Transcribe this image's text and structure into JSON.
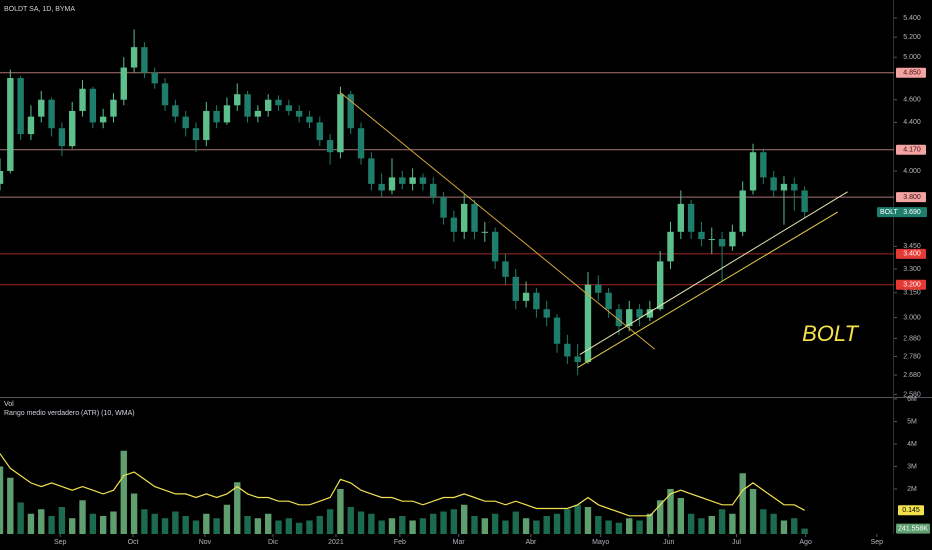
{
  "header": {
    "title": "BOLDT SA, 1D, BYMA"
  },
  "chart_data": {
    "type": "candlestick",
    "annotation": "BOLT",
    "log_scale": true,
    "xlim": [
      0,
      260
    ],
    "xticks": [
      {
        "value": 17.5,
        "label": "Sep"
      },
      {
        "value": 38.7,
        "label": "Oct"
      },
      {
        "value": 59.6,
        "label": "Nov"
      },
      {
        "value": 79.4,
        "label": "Dic"
      },
      {
        "value": 97.7,
        "label": "2021"
      },
      {
        "value": 116.3,
        "label": "Feb"
      },
      {
        "value": 133.4,
        "label": "Mar"
      },
      {
        "value": 154.4,
        "label": "Abr"
      },
      {
        "value": 174.7,
        "label": "Mayo"
      },
      {
        "value": 194.5,
        "label": "Jun"
      },
      {
        "value": 214.2,
        "label": "Jul"
      },
      {
        "value": 234.3,
        "label": "Ago"
      },
      {
        "value": 255,
        "label": "Sep"
      }
    ],
    "ylim": [
      2.58,
      5.4
    ],
    "yticks": [
      {
        "value": 5.4,
        "label": "5.400"
      },
      {
        "value": 5.2,
        "label": "5.200"
      },
      {
        "value": 5.0,
        "label": "5.000"
      },
      {
        "value": 4.6,
        "label": "4.600"
      },
      {
        "value": 4.4,
        "label": "4.400"
      },
      {
        "value": 4.0,
        "label": "4.000"
      },
      {
        "value": 3.45,
        "label": "3.450"
      },
      {
        "value": 3.3,
        "label": "3.300"
      },
      {
        "value": 3.15,
        "label": "3.150"
      },
      {
        "value": 3.0,
        "label": "3.000"
      },
      {
        "value": 2.88,
        "label": "2.880"
      },
      {
        "value": 2.78,
        "label": "2.780"
      },
      {
        "value": 2.68,
        "label": "2.680"
      },
      {
        "value": 2.58,
        "label": "2.580"
      }
    ],
    "up_color": "#5cbf8c",
    "down_color": "#1f7d6b",
    "x": [
      0,
      3,
      6,
      9,
      12,
      15,
      18,
      21,
      24,
      27,
      30,
      33,
      36,
      39,
      42,
      45,
      48,
      51,
      54,
      57,
      60,
      63,
      66,
      69,
      72,
      75,
      78,
      81,
      84,
      87,
      90,
      93,
      96,
      99,
      102,
      105,
      108,
      111,
      114,
      117,
      120,
      123,
      126,
      129,
      132,
      135,
      138,
      141,
      144,
      147,
      150,
      153,
      156,
      159,
      162,
      165,
      168,
      171,
      174,
      177,
      180,
      183,
      186,
      189,
      192,
      195,
      198,
      201,
      204,
      207,
      210,
      213,
      216,
      219,
      222,
      225,
      228,
      231,
      234
    ],
    "candles": [
      [
        3.9,
        4.1,
        3.85,
        4.0
      ],
      [
        4.0,
        4.88,
        3.98,
        4.8
      ],
      [
        4.8,
        4.82,
        4.25,
        4.3
      ],
      [
        4.3,
        4.55,
        4.25,
        4.45
      ],
      [
        4.45,
        4.68,
        4.4,
        4.6
      ],
      [
        4.6,
        4.62,
        4.28,
        4.35
      ],
      [
        4.35,
        4.4,
        4.12,
        4.2
      ],
      [
        4.2,
        4.58,
        4.18,
        4.5
      ],
      [
        4.5,
        4.78,
        4.45,
        4.7
      ],
      [
        4.7,
        4.72,
        4.35,
        4.4
      ],
      [
        4.4,
        4.52,
        4.35,
        4.45
      ],
      [
        4.45,
        4.66,
        4.4,
        4.6
      ],
      [
        4.6,
        5.0,
        4.55,
        4.9
      ],
      [
        4.9,
        5.28,
        4.85,
        5.1
      ],
      [
        5.1,
        5.15,
        4.8,
        4.85
      ],
      [
        4.85,
        4.9,
        4.7,
        4.75
      ],
      [
        4.75,
        4.8,
        4.5,
        4.55
      ],
      [
        4.55,
        4.6,
        4.4,
        4.45
      ],
      [
        4.45,
        4.5,
        4.28,
        4.35
      ],
      [
        4.35,
        4.4,
        4.15,
        4.25
      ],
      [
        4.25,
        4.58,
        4.2,
        4.5
      ],
      [
        4.5,
        4.55,
        4.35,
        4.4
      ],
      [
        4.4,
        4.62,
        4.38,
        4.55
      ],
      [
        4.55,
        4.75,
        4.5,
        4.65
      ],
      [
        4.65,
        4.68,
        4.4,
        4.45
      ],
      [
        4.45,
        4.55,
        4.4,
        4.5
      ],
      [
        4.5,
        4.65,
        4.45,
        4.6
      ],
      [
        4.6,
        4.64,
        4.5,
        4.55
      ],
      [
        4.55,
        4.6,
        4.46,
        4.5
      ],
      [
        4.5,
        4.55,
        4.4,
        4.45
      ],
      [
        4.45,
        4.5,
        4.35,
        4.4
      ],
      [
        4.4,
        4.45,
        4.2,
        4.25
      ],
      [
        4.25,
        4.3,
        4.05,
        4.15
      ],
      [
        4.15,
        4.72,
        4.1,
        4.65
      ],
      [
        4.65,
        4.68,
        4.3,
        4.35
      ],
      [
        4.35,
        4.4,
        4.05,
        4.1
      ],
      [
        4.1,
        4.15,
        3.85,
        3.9
      ],
      [
        3.9,
        3.98,
        3.8,
        3.85
      ],
      [
        3.85,
        4.1,
        3.82,
        3.95
      ],
      [
        3.95,
        4.0,
        3.86,
        3.9
      ],
      [
        3.9,
        4.02,
        3.85,
        3.95
      ],
      [
        3.95,
        3.98,
        3.85,
        3.9
      ],
      [
        3.9,
        3.95,
        3.75,
        3.8
      ],
      [
        3.8,
        3.84,
        3.6,
        3.65
      ],
      [
        3.65,
        3.7,
        3.48,
        3.55
      ],
      [
        3.55,
        3.82,
        3.5,
        3.75
      ],
      [
        3.75,
        3.78,
        3.5,
        3.55
      ],
      [
        3.55,
        3.62,
        3.48,
        3.55
      ],
      [
        3.55,
        3.58,
        3.3,
        3.35
      ],
      [
        3.35,
        3.4,
        3.2,
        3.25
      ],
      [
        3.25,
        3.3,
        3.05,
        3.1
      ],
      [
        3.1,
        3.22,
        3.06,
        3.15
      ],
      [
        3.15,
        3.18,
        3.0,
        3.05
      ],
      [
        3.05,
        3.1,
        2.95,
        3.0
      ],
      [
        3.0,
        3.02,
        2.8,
        2.85
      ],
      [
        2.85,
        2.9,
        2.74,
        2.78
      ],
      [
        2.78,
        2.85,
        2.68,
        2.75
      ],
      [
        2.75,
        3.28,
        2.74,
        3.2
      ],
      [
        3.2,
        3.26,
        3.1,
        3.15
      ],
      [
        3.15,
        3.18,
        3.0,
        3.05
      ],
      [
        3.05,
        3.08,
        2.9,
        2.95
      ],
      [
        2.95,
        3.1,
        2.92,
        3.05
      ],
      [
        3.05,
        3.08,
        2.95,
        3.0
      ],
      [
        3.0,
        3.1,
        2.98,
        3.05
      ],
      [
        3.05,
        3.42,
        3.04,
        3.35
      ],
      [
        3.35,
        3.62,
        3.3,
        3.55
      ],
      [
        3.55,
        3.85,
        3.5,
        3.75
      ],
      [
        3.75,
        3.78,
        3.5,
        3.55
      ],
      [
        3.55,
        3.62,
        3.45,
        3.5
      ],
      [
        3.5,
        3.58,
        3.4,
        3.5
      ],
      [
        3.5,
        3.55,
        3.22,
        3.45
      ],
      [
        3.45,
        3.6,
        3.42,
        3.55
      ],
      [
        3.55,
        3.92,
        3.52,
        3.85
      ],
      [
        3.85,
        4.22,
        3.82,
        4.15
      ],
      [
        4.15,
        4.18,
        3.9,
        3.95
      ],
      [
        3.95,
        4.0,
        3.8,
        3.85
      ],
      [
        3.85,
        3.96,
        3.6,
        3.9
      ],
      [
        3.9,
        3.95,
        3.7,
        3.85
      ],
      [
        3.85,
        3.88,
        3.65,
        3.69
      ]
    ],
    "levels": [
      {
        "value": 4.85,
        "label": "4.850",
        "color": "#f4a3a3"
      },
      {
        "value": 4.17,
        "label": "4.170",
        "color": "#f4a3a3"
      },
      {
        "value": 3.8,
        "label": "3.800",
        "color": "#f4a3a3"
      },
      {
        "value": 3.4,
        "label": "3.400",
        "color": "#e53935"
      },
      {
        "value": 3.2,
        "label": "3.200",
        "color": "#e53935"
      }
    ],
    "trend_lines": [
      {
        "x": [
          98.8,
          190.4
        ],
        "y": [
          4.67,
          2.82
        ],
        "color": "#d9a441"
      },
      {
        "x": [
          168.6,
          246.5
        ],
        "y": [
          2.79,
          3.84
        ],
        "color": "#e8e6b0"
      },
      {
        "x": [
          168.0,
          243.6
        ],
        "y": [
          2.72,
          3.69
        ],
        "color": "#e6d24a"
      }
    ],
    "last_price": {
      "symbol": "BOLT",
      "value": 3.69,
      "label": "3.690",
      "color": "#1f7d6b"
    },
    "volume": {
      "title": "Vol",
      "up_color": "#5f9e6e",
      "down_color": "#1d6b4f",
      "ylim": [
        0,
        6000000
      ],
      "yticks": [
        {
          "value": 6000000,
          "label": "6M"
        },
        {
          "value": 5000000,
          "label": "5M"
        },
        {
          "value": 4000000,
          "label": "4M"
        },
        {
          "value": 3000000,
          "label": "3M"
        },
        {
          "value": 2000000,
          "label": "2M"
        }
      ],
      "values": [
        3000000,
        2500000,
        1400000,
        900000,
        1100000,
        800000,
        1200000,
        700000,
        1500000,
        900000,
        800000,
        1000000,
        3700000,
        1800000,
        1100000,
        900000,
        700000,
        1000000,
        800000,
        600000,
        900000,
        700000,
        1300000,
        2300000,
        800000,
        700000,
        900000,
        600000,
        700000,
        500000,
        600000,
        800000,
        1100000,
        2000000,
        1200000,
        1000000,
        900000,
        600000,
        700000,
        800000,
        600000,
        700000,
        900000,
        1000000,
        1100000,
        1300000,
        800000,
        700000,
        900000,
        600000,
        1000000,
        700000,
        600000,
        800000,
        900000,
        1100000,
        1300000,
        1200000,
        800000,
        600000,
        500000,
        700000,
        600000,
        900000,
        1500000,
        2000000,
        1600000,
        900000,
        700000,
        800000,
        1100000,
        900000,
        2700000,
        2000000,
        1100000,
        900000,
        600000,
        700000,
        241558
      ],
      "last_label": "241.558K"
    },
    "atr": {
      "title": "Rango medio verdadero (ATR) (10, WMA)",
      "color": "#f2e14c",
      "axis": "y2",
      "y2lim": [
        0.08,
        0.45
      ],
      "values": [
        0.3,
        0.26,
        0.24,
        0.22,
        0.21,
        0.22,
        0.21,
        0.2,
        0.21,
        0.2,
        0.19,
        0.2,
        0.24,
        0.25,
        0.23,
        0.21,
        0.2,
        0.19,
        0.19,
        0.18,
        0.19,
        0.18,
        0.19,
        0.21,
        0.19,
        0.18,
        0.18,
        0.17,
        0.17,
        0.16,
        0.16,
        0.17,
        0.18,
        0.23,
        0.22,
        0.2,
        0.19,
        0.18,
        0.18,
        0.17,
        0.17,
        0.16,
        0.17,
        0.18,
        0.18,
        0.19,
        0.18,
        0.17,
        0.17,
        0.16,
        0.17,
        0.16,
        0.15,
        0.15,
        0.15,
        0.15,
        0.16,
        0.18,
        0.16,
        0.15,
        0.14,
        0.13,
        0.13,
        0.13,
        0.16,
        0.19,
        0.2,
        0.19,
        0.18,
        0.17,
        0.16,
        0.16,
        0.2,
        0.22,
        0.2,
        0.18,
        0.16,
        0.16,
        0.145
      ]
    }
  }
}
